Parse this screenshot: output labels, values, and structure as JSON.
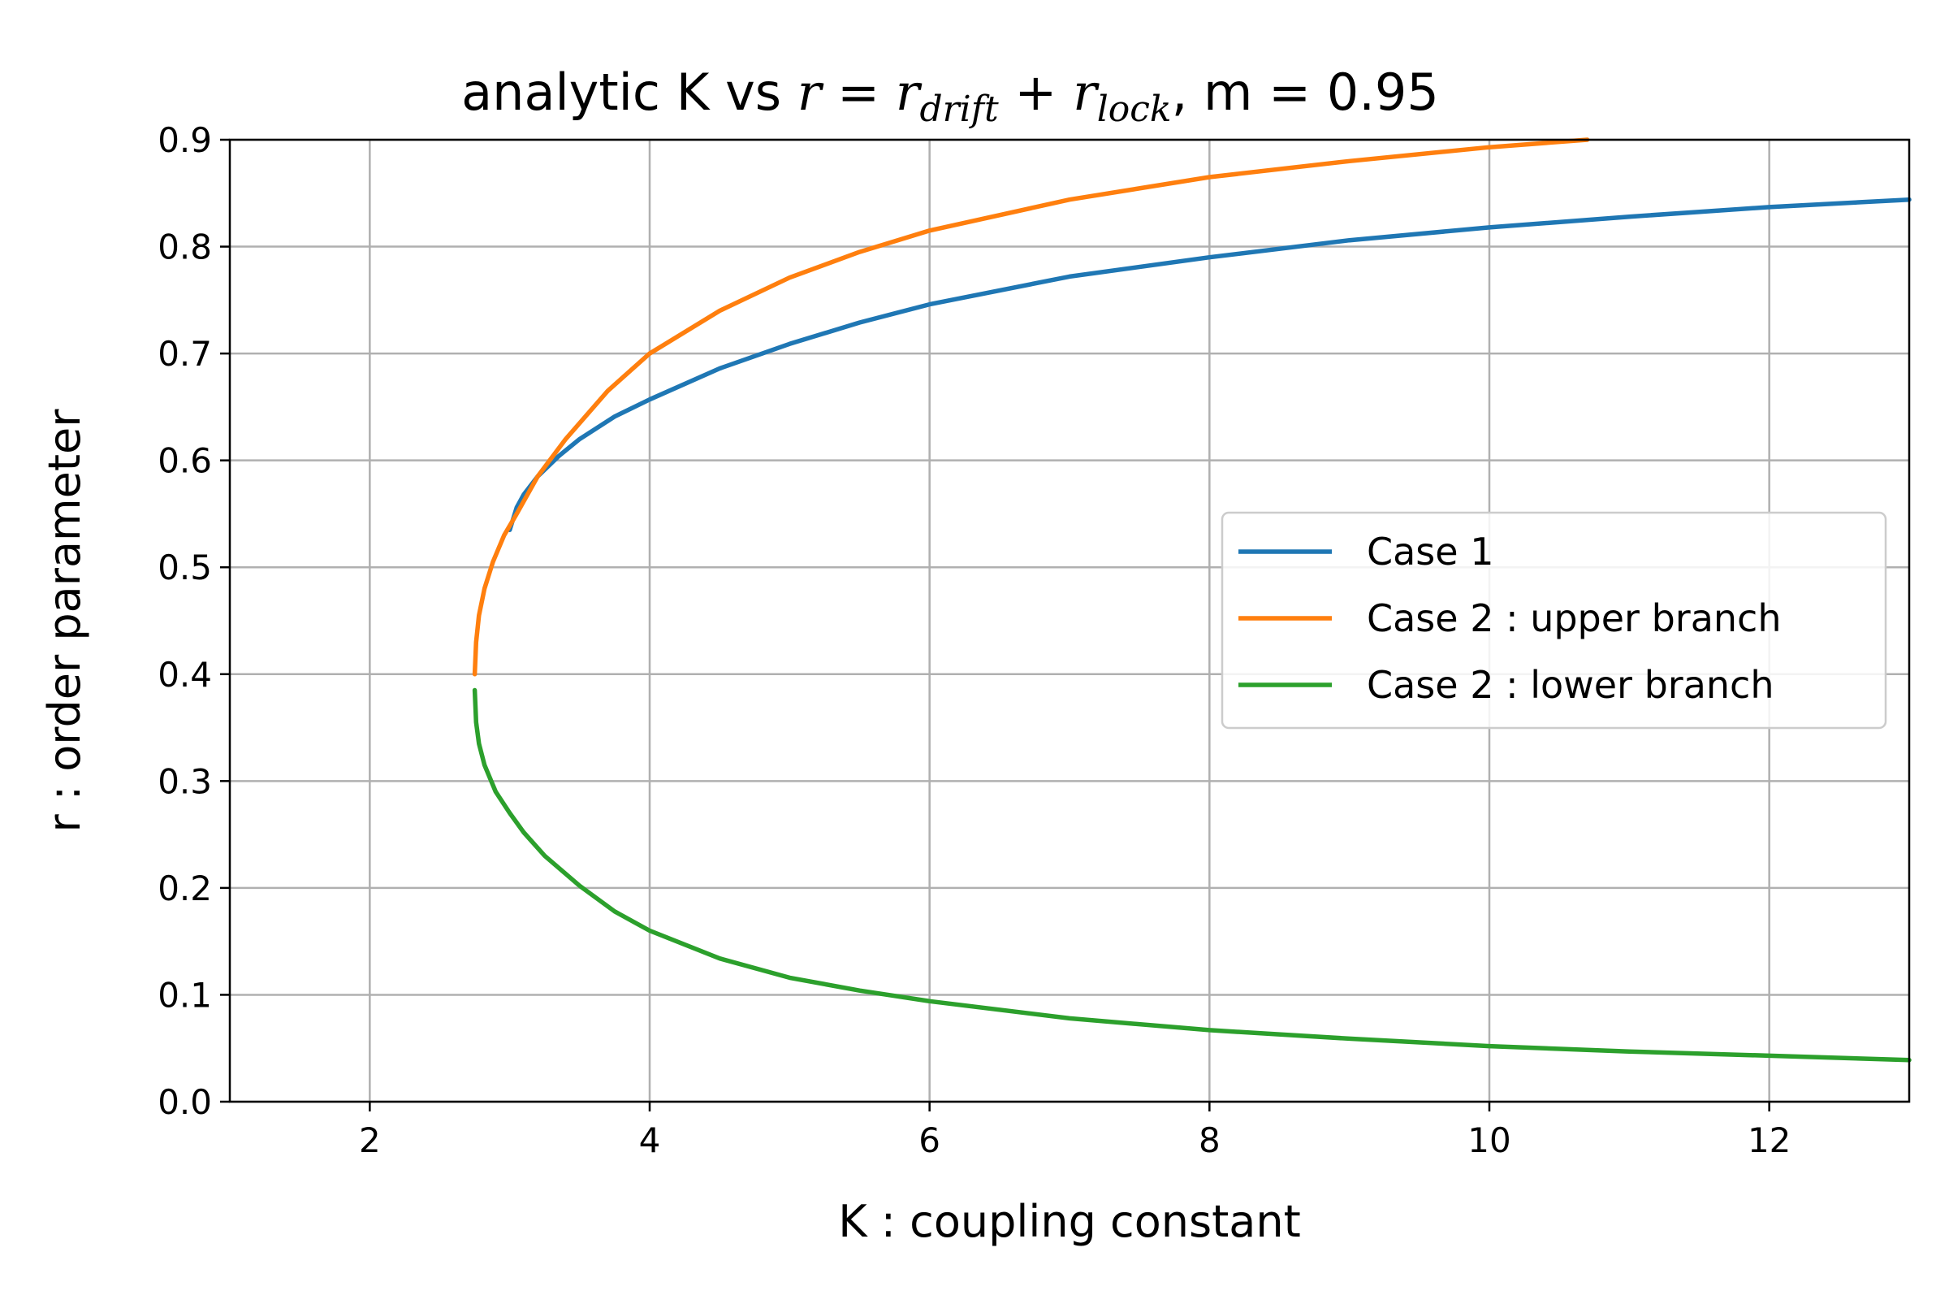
{
  "chart_data": {
    "type": "line",
    "title": {
      "prefix": "analytic K vs ",
      "math_r": "r",
      "math_eq": " = ",
      "math_r_drift": "r",
      "sub_drift": "drift",
      "math_plus": " + ",
      "math_r_lock": "r",
      "sub_lock": "lock",
      "suffix": ", m = 0.95"
    },
    "xlabel": "K : coupling constant",
    "ylabel": "r : order parameter",
    "xlim": [
      1,
      13
    ],
    "ylim": [
      0,
      0.9
    ],
    "xticks": [
      2,
      4,
      6,
      8,
      10,
      12
    ],
    "xtick_labels": [
      "2",
      "4",
      "6",
      "8",
      "10",
      "12"
    ],
    "yticks": [
      0.0,
      0.1,
      0.2,
      0.3,
      0.4,
      0.5,
      0.6,
      0.7,
      0.8,
      0.9
    ],
    "ytick_labels": [
      "0.0",
      "0.1",
      "0.2",
      "0.3",
      "0.4",
      "0.5",
      "0.6",
      "0.7",
      "0.8",
      "0.9"
    ],
    "grid": true,
    "legend_position": "center-right",
    "series": [
      {
        "name": "Case 1",
        "color": "#1f77b4",
        "x": [
          3.0,
          3.05,
          3.1,
          3.2,
          3.35,
          3.5,
          3.75,
          4.0,
          4.5,
          5.0,
          5.5,
          6.0,
          7.0,
          8.0,
          9.0,
          10.0,
          11.0,
          12.0,
          13.0
        ],
        "y": [
          0.535,
          0.556,
          0.568,
          0.585,
          0.604,
          0.62,
          0.641,
          0.657,
          0.686,
          0.709,
          0.729,
          0.746,
          0.772,
          0.79,
          0.806,
          0.818,
          0.828,
          0.837,
          0.844
        ]
      },
      {
        "name": "Case 2 : upper branch",
        "color": "#ff7f0e",
        "x": [
          2.75,
          2.76,
          2.78,
          2.82,
          2.88,
          2.96,
          3.05,
          3.2,
          3.4,
          3.7,
          4.0,
          4.5,
          5.0,
          5.5,
          6.0,
          7.0,
          8.0,
          9.0,
          10.0,
          10.7
        ],
        "y": [
          0.4,
          0.43,
          0.455,
          0.48,
          0.505,
          0.53,
          0.55,
          0.585,
          0.62,
          0.665,
          0.7,
          0.74,
          0.771,
          0.795,
          0.815,
          0.844,
          0.865,
          0.88,
          0.893,
          0.9
        ]
      },
      {
        "name": "Case 2 : lower branch",
        "color": "#2ca02c",
        "x": [
          2.75,
          2.76,
          2.78,
          2.82,
          2.9,
          3.0,
          3.1,
          3.25,
          3.5,
          3.75,
          4.0,
          4.5,
          5.0,
          5.5,
          6.0,
          7.0,
          8.0,
          9.0,
          10.0,
          11.0,
          12.0,
          13.0
        ],
        "y": [
          0.385,
          0.355,
          0.335,
          0.315,
          0.29,
          0.27,
          0.252,
          0.23,
          0.202,
          0.178,
          0.16,
          0.134,
          0.116,
          0.104,
          0.094,
          0.078,
          0.067,
          0.059,
          0.052,
          0.047,
          0.043,
          0.039
        ]
      }
    ]
  }
}
